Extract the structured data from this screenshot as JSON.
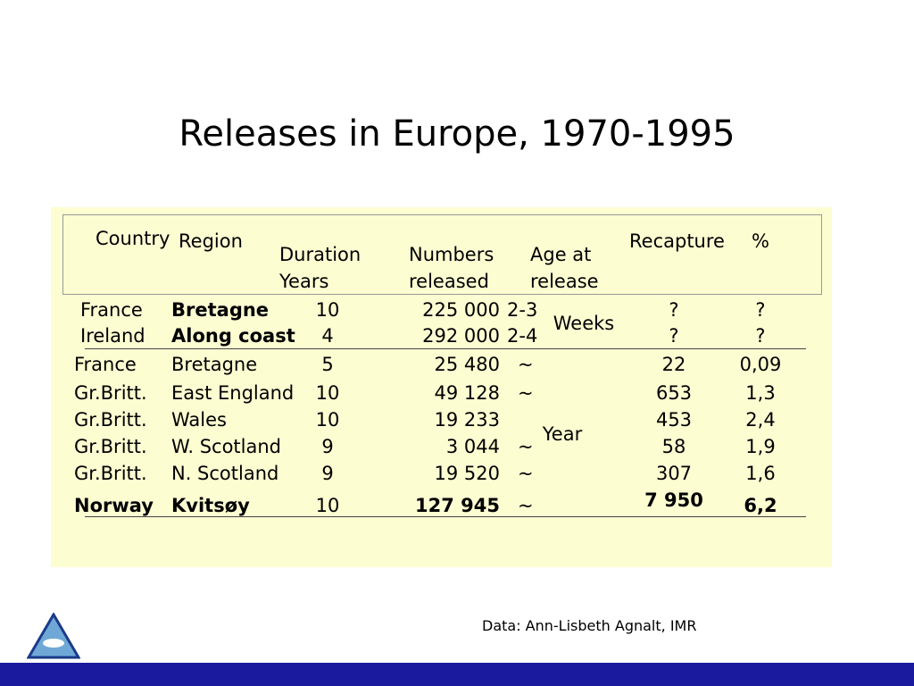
{
  "header": {
    "title": "Releases in Europe, 1970-1995"
  },
  "table": {
    "columns": [
      "Country",
      "Region",
      "Duration\nYears",
      "Numbers\nreleased",
      "Age at\nrelease",
      "Recapture",
      "%"
    ],
    "rows": [
      {
        "country": "France",
        "region": "Bretagne",
        "duration": "10",
        "numbers": "225 000",
        "age": "2-3",
        "recapture": "?",
        "percent": "?"
      },
      {
        "country": "Ireland",
        "region": "Along coast",
        "duration": "4",
        "numbers": "292 000",
        "age": "2-4",
        "recapture": "?",
        "percent": "?"
      },
      {
        "country": "France",
        "region": "Bretagne",
        "duration": "5",
        "numbers": "25 480",
        "age": "~",
        "recapture": "22",
        "percent": "0,09"
      },
      {
        "country": "Gr.Britt.",
        "region": "East England",
        "duration": "10",
        "numbers": "49 128",
        "age": "~",
        "recapture": "653",
        "percent": "1,3"
      },
      {
        "country": "Gr.Britt.",
        "region": "Wales",
        "duration": "10",
        "numbers": "19 233",
        "recapture": "453",
        "percent": "2,4"
      },
      {
        "country": "Gr.Britt.",
        "region": "W. Scotland",
        "duration": "9",
        "numbers": "3 044",
        "age": "~",
        "recapture": "58",
        "percent": "1,9"
      },
      {
        "country": "Gr.Britt.",
        "region": "N. Scotland",
        "duration": "9",
        "numbers": "19 520",
        "age": "~",
        "recapture": "307",
        "percent": "1,6"
      },
      {
        "country": "Norway",
        "region": "Kvitsøy",
        "duration": "10",
        "numbers": "127 945",
        "age": "~",
        "recapture": "7 950",
        "percent": "6,2"
      }
    ],
    "age_groups": [
      "Weeks",
      "Year"
    ]
  },
  "footer": {
    "source": "Data: Ann-Lisbeth Agnalt, IMR"
  }
}
